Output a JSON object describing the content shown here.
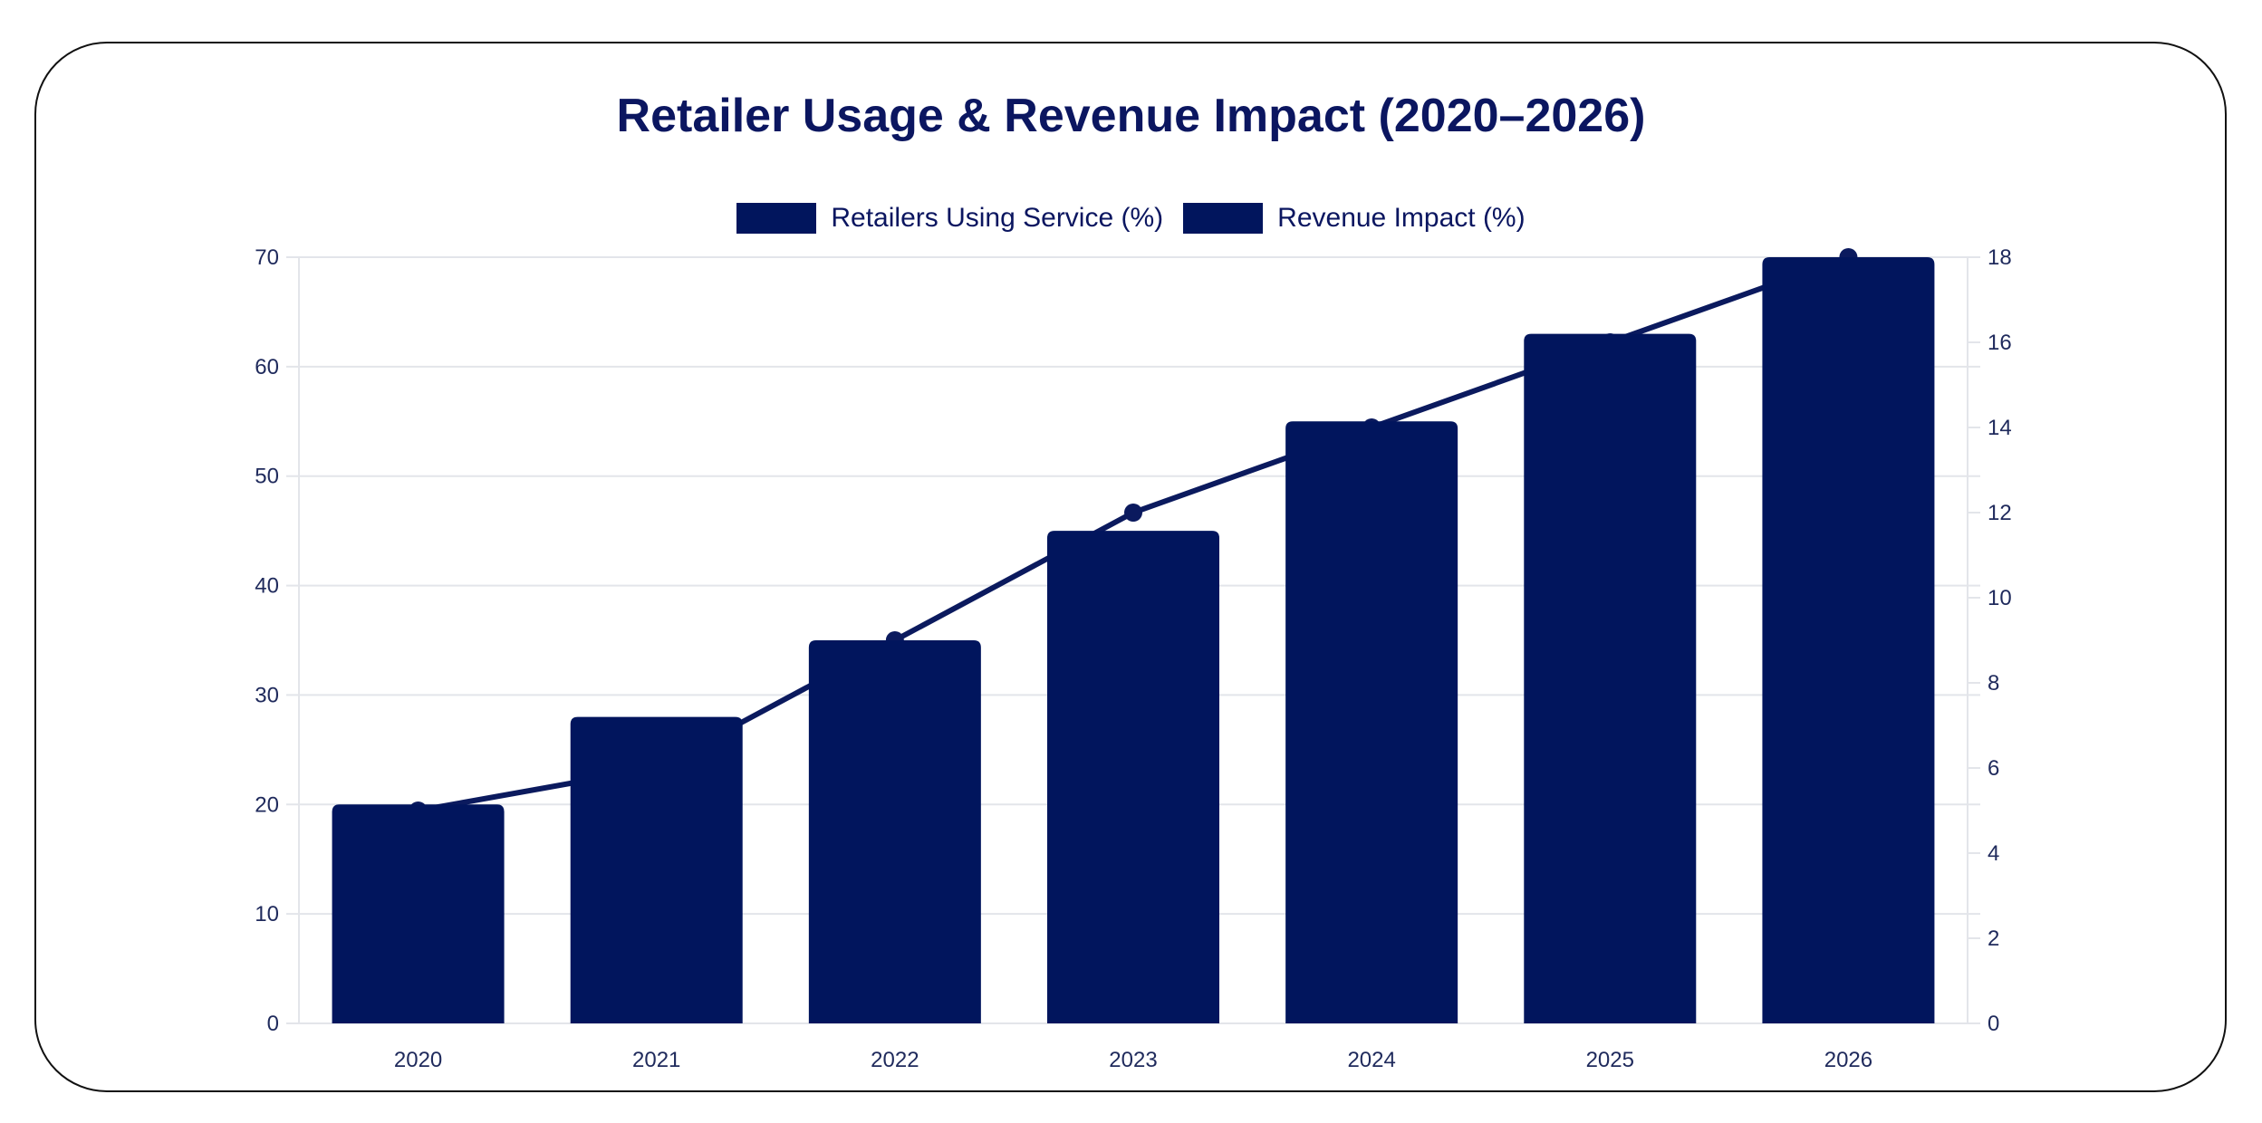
{
  "colors": {
    "bar": "#01155d",
    "line": "#0b1a5e",
    "grid": "#e3e5ea",
    "text": "#0b1660"
  },
  "chart_data": {
    "type": "bar",
    "title": "Retailer Usage & Revenue Impact (2020–2026)",
    "categories": [
      "2020",
      "2021",
      "2022",
      "2023",
      "2024",
      "2025",
      "2026"
    ],
    "series": [
      {
        "name": "Retailers Using Service (%)",
        "type": "bar",
        "axis": "left",
        "values": [
          20,
          28,
          35,
          45,
          55,
          63,
          70
        ]
      },
      {
        "name": "Revenue Impact (%)",
        "type": "line",
        "axis": "right",
        "values": [
          5,
          6,
          9,
          12,
          14,
          16,
          18
        ]
      }
    ],
    "y_left": {
      "min": 0,
      "max": 70,
      "ticks": [
        0,
        10,
        20,
        30,
        40,
        50,
        60,
        70
      ]
    },
    "y_right": {
      "min": 0,
      "max": 18,
      "ticks": [
        0,
        2,
        4,
        6,
        8,
        10,
        12,
        14,
        16,
        18
      ]
    },
    "legend_position": "top-center",
    "grid": true
  }
}
